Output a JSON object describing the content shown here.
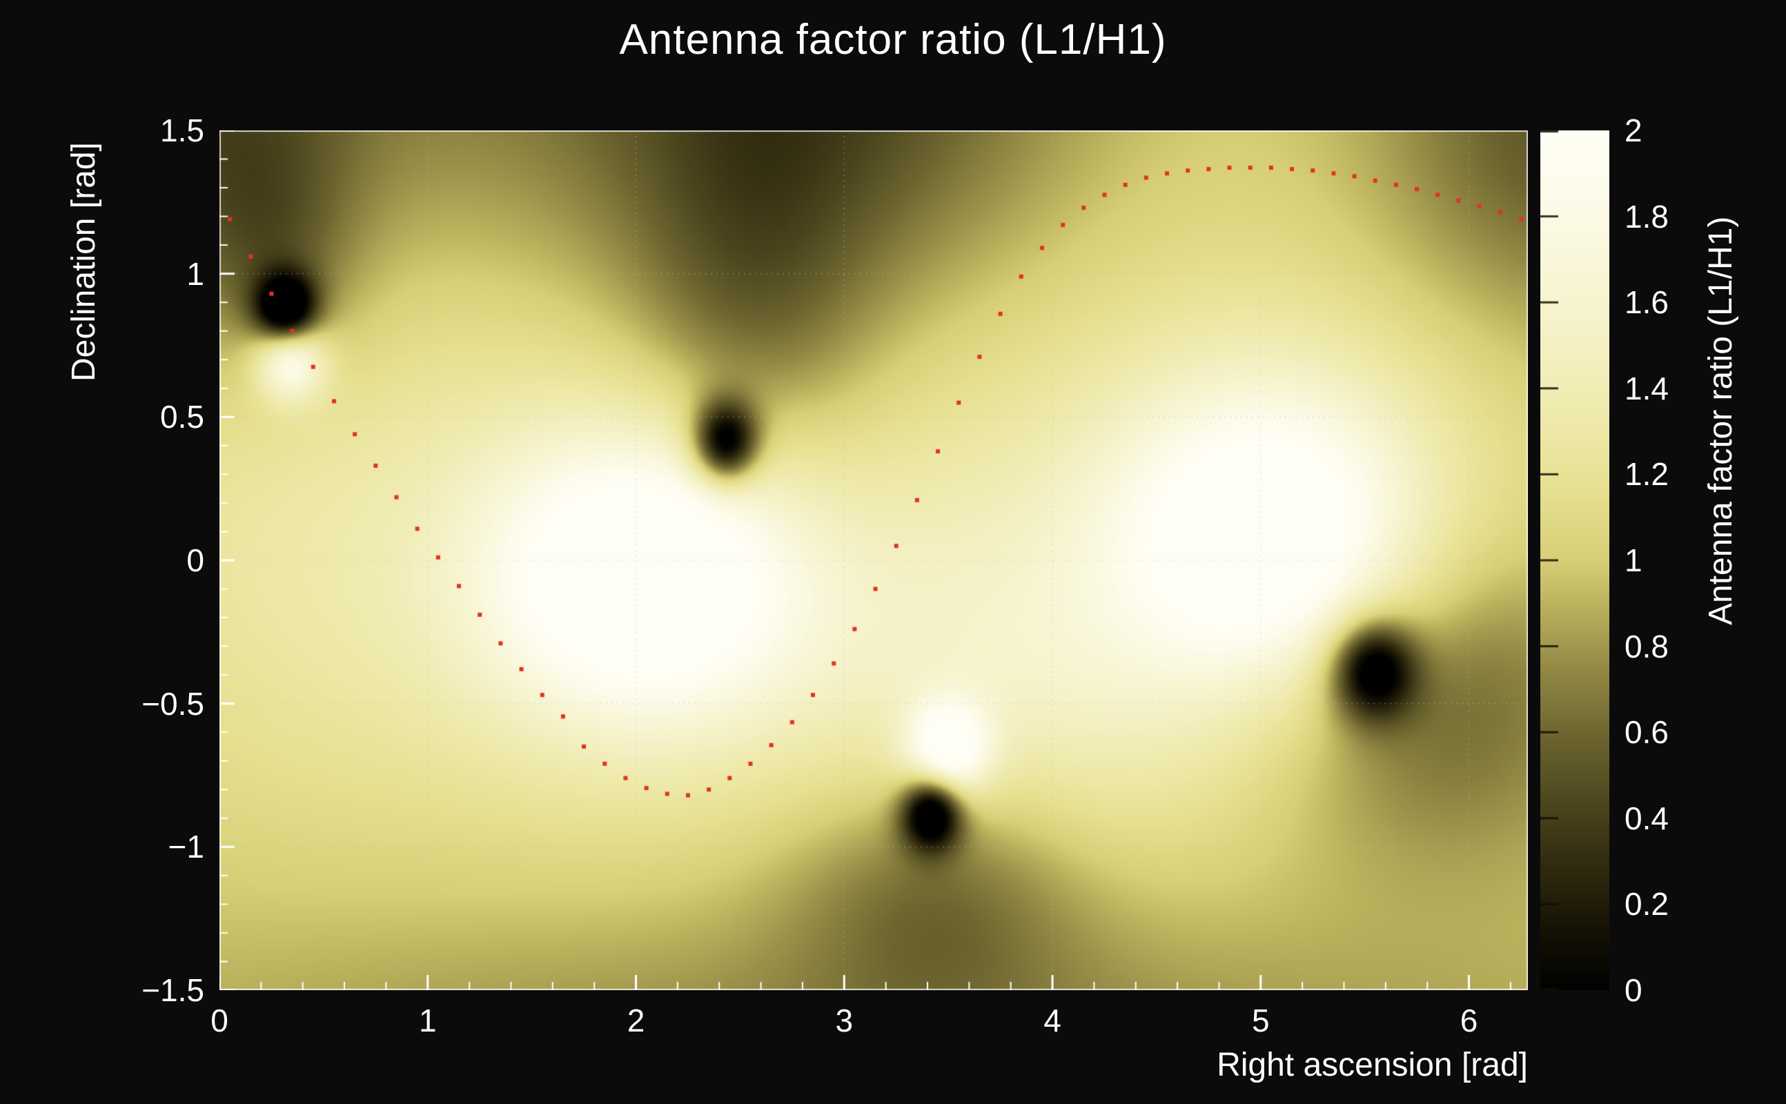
{
  "figure": {
    "background": "#0b0b0b",
    "text_color": "#ffffff"
  },
  "chart_data": {
    "type": "heatmap",
    "title": "Antenna factor ratio (L1/H1)",
    "xlabel": "Right ascension [rad]",
    "ylabel": "Declination [rad]",
    "zlabel": "Antenna factor ratio (L1/H1)",
    "xlim": [
      0,
      6.2832
    ],
    "ylim": [
      -1.5,
      1.5
    ],
    "zlim": [
      0,
      2
    ],
    "x_ticks": [
      0,
      1,
      2,
      3,
      4,
      5,
      6
    ],
    "x_tick_labels": [
      "0",
      "1",
      "2",
      "3",
      "4",
      "5",
      "6"
    ],
    "x_minor_step": 0.2,
    "y_ticks": [
      -1.5,
      -1,
      -0.5,
      0,
      0.5,
      1,
      1.5
    ],
    "y_tick_labels": [
      "−1.5",
      "−1",
      "−0.5",
      "0",
      "0.5",
      "1",
      "1.5"
    ],
    "y_minor_step": 0.1,
    "z_ticks": [
      0,
      0.2,
      0.4,
      0.6,
      0.8,
      1,
      1.2,
      1.4,
      1.6,
      1.8,
      2
    ],
    "z_tick_labels": [
      "0",
      "0.2",
      "0.4",
      "0.6",
      "0.8",
      "1",
      "1.2",
      "1.4",
      "1.6",
      "1.8",
      "2"
    ],
    "grid": {
      "show": true,
      "color": "rgba(190,190,190,0.38)",
      "dash": [
        2,
        6
      ]
    },
    "colormap": [
      [
        0.0,
        "#000000"
      ],
      [
        0.15,
        "#171405"
      ],
      [
        0.3,
        "#322c10"
      ],
      [
        0.45,
        "#4f4920"
      ],
      [
        0.6,
        "#6e6630"
      ],
      [
        0.75,
        "#938a45"
      ],
      [
        0.9,
        "#bcb35e"
      ],
      [
        1.0,
        "#d7cf77"
      ],
      [
        1.15,
        "#e5df8e"
      ],
      [
        1.3,
        "#ede8a6"
      ],
      [
        1.5,
        "#f4f0c3"
      ],
      [
        1.7,
        "#f9f7da"
      ],
      [
        1.85,
        "#fdfbea"
      ],
      [
        2.0,
        "#fffef5"
      ]
    ],
    "field": {
      "base": 1.0,
      "gaussians": [
        {
          "x": 2.05,
          "y": -0.05,
          "a": 1.15,
          "sx": 0.52,
          "sy": 0.34
        },
        {
          "x": 2.0,
          "y": -0.1,
          "a": 0.38,
          "sx": 1.15,
          "sy": 0.75
        },
        {
          "x": 5.05,
          "y": 0.08,
          "a": 1.1,
          "sx": 0.5,
          "sy": 0.36
        },
        {
          "x": 4.9,
          "y": 0.0,
          "a": 0.38,
          "sx": 1.1,
          "sy": 0.75
        },
        {
          "x": 3.5,
          "y": -0.66,
          "a": 1.0,
          "sx": 0.14,
          "sy": 0.12
        },
        {
          "x": 3.8,
          "y": -0.45,
          "a": 0.28,
          "sx": 0.7,
          "sy": 0.45
        },
        {
          "x": 0.34,
          "y": 0.7,
          "a": 0.95,
          "sx": 0.12,
          "sy": 0.1
        },
        {
          "x": 0.2,
          "y": 0.15,
          "a": 0.18,
          "sx": 0.75,
          "sy": 0.75
        },
        {
          "x": 0.32,
          "y": 0.875,
          "a": -1.35,
          "sx": 0.1,
          "sy": 0.085
        },
        {
          "x": 0.25,
          "y": 1.02,
          "a": -0.35,
          "sx": 0.28,
          "sy": 0.3
        },
        {
          "x": -0.1,
          "y": 1.55,
          "a": -0.45,
          "sx": 0.55,
          "sy": 0.45
        },
        {
          "x": 2.43,
          "y": 0.41,
          "a": -1.35,
          "sx": 0.11,
          "sy": 0.1
        },
        {
          "x": 2.55,
          "y": 0.8,
          "a": -0.4,
          "sx": 0.42,
          "sy": 0.5
        },
        {
          "x": 2.9,
          "y": 1.7,
          "a": -0.55,
          "sx": 0.85,
          "sy": 0.6
        },
        {
          "x": 3.42,
          "y": -0.88,
          "a": -1.35,
          "sx": 0.1,
          "sy": 0.09
        },
        {
          "x": 3.45,
          "y": -1.12,
          "a": -0.4,
          "sx": 0.5,
          "sy": 0.32
        },
        {
          "x": 5.54,
          "y": -0.38,
          "a": -1.2,
          "sx": 0.14,
          "sy": 0.12
        },
        {
          "x": 5.8,
          "y": -0.45,
          "a": -0.6,
          "sx": 0.6,
          "sy": 0.4
        },
        {
          "x": 6.45,
          "y": 1.5,
          "a": -0.5,
          "sx": 0.65,
          "sy": 0.5
        },
        {
          "x": 3.1,
          "y": -1.9,
          "a": -0.35,
          "sx": 2.6,
          "sy": 0.6
        },
        {
          "x": 1.1,
          "y": 1.8,
          "a": -0.25,
          "sx": 1.2,
          "sy": 0.6
        }
      ]
    },
    "overlay_curve": {
      "name": "dotted-track",
      "marker": "dot",
      "marker_color": "#df3420",
      "marker_size": 6,
      "points": [
        [
          0.05,
          1.19
        ],
        [
          0.15,
          1.06
        ],
        [
          0.25,
          0.93
        ],
        [
          0.35,
          0.8
        ],
        [
          0.45,
          0.675
        ],
        [
          0.55,
          0.555
        ],
        [
          0.65,
          0.44
        ],
        [
          0.75,
          0.33
        ],
        [
          0.85,
          0.22
        ],
        [
          0.95,
          0.11
        ],
        [
          1.05,
          0.01
        ],
        [
          1.15,
          -0.09
        ],
        [
          1.25,
          -0.19
        ],
        [
          1.35,
          -0.29
        ],
        [
          1.45,
          -0.38
        ],
        [
          1.55,
          -0.47
        ],
        [
          1.65,
          -0.545
        ],
        [
          1.75,
          -0.65
        ],
        [
          1.85,
          -0.71
        ],
        [
          1.95,
          -0.76
        ],
        [
          2.05,
          -0.795
        ],
        [
          2.15,
          -0.815
        ],
        [
          2.25,
          -0.82
        ],
        [
          2.35,
          -0.8
        ],
        [
          2.45,
          -0.76
        ],
        [
          2.55,
          -0.71
        ],
        [
          2.65,
          -0.645
        ],
        [
          2.75,
          -0.565
        ],
        [
          2.85,
          -0.47
        ],
        [
          2.95,
          -0.36
        ],
        [
          3.05,
          -0.24
        ],
        [
          3.15,
          -0.1
        ],
        [
          3.25,
          0.05
        ],
        [
          3.35,
          0.21
        ],
        [
          3.45,
          0.38
        ],
        [
          3.55,
          0.55
        ],
        [
          3.65,
          0.71
        ],
        [
          3.75,
          0.86
        ],
        [
          3.85,
          0.99
        ],
        [
          3.95,
          1.09
        ],
        [
          4.05,
          1.17
        ],
        [
          4.15,
          1.23
        ],
        [
          4.25,
          1.275
        ],
        [
          4.35,
          1.31
        ],
        [
          4.45,
          1.335
        ],
        [
          4.55,
          1.35
        ],
        [
          4.65,
          1.36
        ],
        [
          4.75,
          1.365
        ],
        [
          4.85,
          1.37
        ],
        [
          4.95,
          1.37
        ],
        [
          5.05,
          1.37
        ],
        [
          5.15,
          1.365
        ],
        [
          5.25,
          1.36
        ],
        [
          5.35,
          1.35
        ],
        [
          5.45,
          1.34
        ],
        [
          5.55,
          1.325
        ],
        [
          5.65,
          1.31
        ],
        [
          5.75,
          1.295
        ],
        [
          5.85,
          1.275
        ],
        [
          5.95,
          1.255
        ],
        [
          6.05,
          1.235
        ],
        [
          6.15,
          1.215
        ],
        [
          6.25,
          1.19
        ]
      ]
    }
  }
}
